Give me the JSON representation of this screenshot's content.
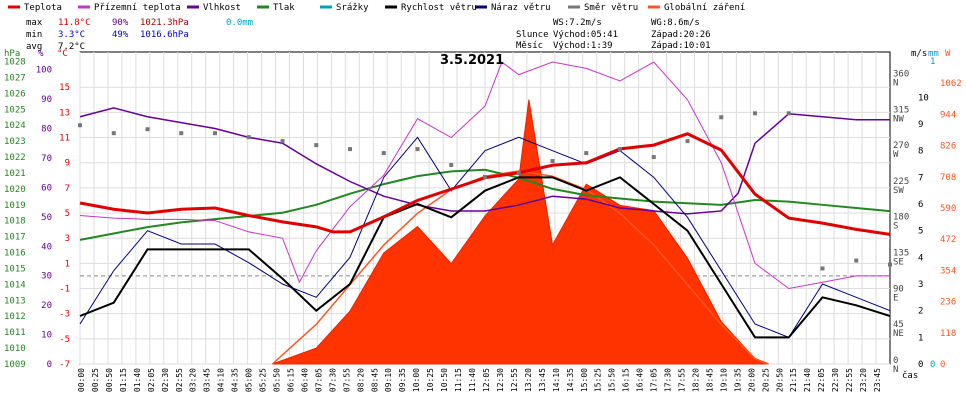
{
  "chart_data": {
    "type": "line",
    "title": "3.5.2021",
    "legend": [
      {
        "name": "Teplota",
        "color": "#e00000"
      },
      {
        "name": "Přízemní teplota",
        "color": "#cc33cc"
      },
      {
        "name": "Vlhkost",
        "color": "#660099"
      },
      {
        "name": "Tlak",
        "color": "#228822"
      },
      {
        "name": "Srážky",
        "color": "#00a0c0"
      },
      {
        "name": "Rychlost větru",
        "color": "#000000"
      },
      {
        "name": "Náraz větru",
        "color": "#000080"
      },
      {
        "name": "Směr větru",
        "color": "#777777"
      },
      {
        "name": "Globální záření",
        "color": "#ff5522"
      }
    ],
    "stats": {
      "max": {
        "label": "max",
        "temp": "11.8°C",
        "hum": "90%",
        "press": "1021.3hPa",
        "rain": "0.0mm"
      },
      "min": {
        "label": "min",
        "temp": "3.3°C",
        "hum": "49%",
        "press": "1016.6hPa"
      },
      "avg": {
        "label": "avg",
        "temp": "7.2°C"
      }
    },
    "info": {
      "ws": "WS:7.2m/s",
      "wg": "WG:8.6m/s",
      "sun_label": "Slunce",
      "sun_rise": "Východ:05:41",
      "sun_set": "Západ:20:26",
      "moon_label": "Měsíc",
      "moon_rise": "Východ:1:39",
      "moon_set": "Západ:10:01"
    },
    "axes": {
      "hpa_unit": "hPa",
      "pct_unit": "%",
      "degc_unit": "°C",
      "ms_unit": "m/s",
      "mm_unit": "mm",
      "w_unit": "W",
      "hpa": [
        "1028",
        "1027",
        "1026",
        "1025",
        "1024",
        "1023",
        "1022",
        "1021",
        "1020",
        "1019",
        "1018",
        "1017",
        "1016",
        "1015",
        "1014",
        "1013",
        "1012",
        "1011",
        "1010",
        "1009"
      ],
      "pct": [
        "100",
        "90",
        "80",
        "70",
        "60",
        "50",
        "40",
        "30",
        "20",
        "10",
        "0"
      ],
      "degc": [
        "15",
        "13",
        "11",
        "9",
        "7",
        "5",
        "3",
        "1",
        "-1",
        "-3",
        "-5",
        "-7"
      ],
      "dir": [
        {
          "deg": "360",
          "c": "N"
        },
        {
          "deg": "315",
          "c": "NW"
        },
        {
          "deg": "270",
          "c": "W"
        },
        {
          "deg": "225",
          "c": "SW"
        },
        {
          "deg": "180",
          "c": "S"
        },
        {
          "deg": "135",
          "c": "SE"
        },
        {
          "deg": "90",
          "c": "E"
        },
        {
          "deg": "45",
          "c": "NE"
        },
        {
          "deg": "0",
          "c": "N"
        }
      ],
      "ms": [
        "10",
        "9",
        "8",
        "7",
        "6",
        "5",
        "4",
        "3",
        "2",
        "1",
        "0"
      ],
      "mm": [
        "1",
        "0"
      ],
      "wm2": [
        "1062",
        "944",
        "826",
        "708",
        "590",
        "472",
        "354",
        "236",
        "118",
        "0"
      ],
      "time_label": "čas",
      "times": [
        "00:00",
        "00:25",
        "00:50",
        "01:15",
        "01:40",
        "02:05",
        "02:30",
        "02:55",
        "03:20",
        "03:45",
        "04:10",
        "04:35",
        "05:00",
        "05:25",
        "05:50",
        "06:15",
        "06:40",
        "07:05",
        "07:30",
        "07:55",
        "08:20",
        "08:45",
        "09:10",
        "09:35",
        "10:00",
        "10:25",
        "10:50",
        "11:15",
        "11:40",
        "12:05",
        "12:30",
        "12:55",
        "13:20",
        "13:45",
        "14:10",
        "14:35",
        "15:00",
        "15:25",
        "15:50",
        "16:15",
        "16:40",
        "17:05",
        "17:30",
        "17:55",
        "18:20",
        "18:45",
        "19:10",
        "19:35",
        "20:00",
        "20:25",
        "20:50",
        "21:15",
        "21:40",
        "22:05",
        "22:30",
        "22:55",
        "23:20",
        "23:45"
      ]
    },
    "series": [
      {
        "name": "Teplota",
        "unit": "°C",
        "x": [
          0,
          1,
          2,
          3,
          4,
          5,
          6,
          7,
          7.5,
          8,
          9,
          10,
          11,
          12,
          13,
          14,
          15,
          16,
          17,
          18,
          19,
          20,
          21,
          22,
          23,
          24
        ],
        "y": [
          5.8,
          5.3,
          5.0,
          5.3,
          5.4,
          4.8,
          4.3,
          3.9,
          3.5,
          3.5,
          4.7,
          6.0,
          6.9,
          7.8,
          8.2,
          8.8,
          9.0,
          10.1,
          10.4,
          11.3,
          10.0,
          6.5,
          4.6,
          4.2,
          3.7,
          3.3
        ]
      },
      {
        "name": "Přízemní teplota",
        "unit": "°C",
        "x": [
          0,
          1,
          2,
          3,
          4,
          5,
          6,
          6.5,
          7,
          8,
          9,
          10,
          11,
          12,
          12.5,
          13,
          14,
          15,
          16,
          17,
          18,
          19,
          19.5,
          20,
          21,
          22,
          23,
          24
        ],
        "y": [
          4.8,
          4.6,
          4.5,
          4.5,
          4.4,
          3.5,
          3.0,
          -0.5,
          2.0,
          5.5,
          8.0,
          12.5,
          11.0,
          13.5,
          17.0,
          16.0,
          17.0,
          16.5,
          15.5,
          17.0,
          14.0,
          9.0,
          5.0,
          1.0,
          -1.0,
          -0.5,
          0.0,
          0.0
        ]
      },
      {
        "name": "Vlhkost",
        "unit": "%",
        "x": [
          0,
          1,
          2,
          3,
          4,
          5,
          6,
          7,
          8,
          9,
          10,
          11,
          12,
          13,
          14,
          15,
          16,
          17,
          18,
          19,
          19.5,
          20,
          21,
          22,
          23,
          24
        ],
        "y": [
          84,
          87,
          84,
          82,
          80,
          77,
          75,
          68,
          62,
          57,
          54,
          52,
          52,
          54,
          57,
          56,
          53,
          52,
          51,
          52,
          58,
          75,
          85,
          84,
          83,
          83
        ]
      },
      {
        "name": "Tlak",
        "unit": "hPa",
        "x": [
          0,
          1,
          2,
          3,
          4,
          5,
          6,
          7,
          8,
          9,
          10,
          11,
          12,
          13,
          14,
          15,
          16,
          17,
          18,
          19,
          20,
          21,
          22,
          23,
          24
        ],
        "y": [
          1016.8,
          1017.2,
          1017.6,
          1017.9,
          1018.1,
          1018.3,
          1018.5,
          1019.0,
          1019.7,
          1020.3,
          1020.8,
          1021.1,
          1021.2,
          1020.7,
          1020.0,
          1019.6,
          1019.4,
          1019.2,
          1019.1,
          1019.0,
          1019.3,
          1019.2,
          1019.0,
          1018.8,
          1018.6
        ]
      },
      {
        "name": "Rychlost větru",
        "unit": "m/s",
        "x": [
          0,
          1,
          2,
          3,
          4,
          5,
          6,
          7,
          8,
          9,
          10,
          11,
          12,
          13,
          14,
          15,
          16,
          17,
          18,
          19,
          20,
          21,
          22,
          23,
          24
        ],
        "y": [
          1.8,
          2.3,
          4.3,
          4.3,
          4.3,
          4.3,
          3.2,
          2.0,
          3.0,
          5.5,
          6.0,
          5.5,
          6.5,
          7.0,
          7.0,
          6.5,
          7.0,
          6.0,
          5.0,
          3.0,
          1.0,
          1.0,
          2.5,
          2.2,
          1.8
        ]
      },
      {
        "name": "Náraz větru",
        "unit": "m/s",
        "x": [
          0,
          1,
          2,
          3,
          4,
          5,
          6,
          7,
          8,
          9,
          10,
          11,
          12,
          13,
          14,
          15,
          16,
          17,
          18,
          19,
          20,
          21,
          22,
          23,
          24
        ],
        "y": [
          1.5,
          3.5,
          5.0,
          4.5,
          4.5,
          3.8,
          3.0,
          2.5,
          4.0,
          7.0,
          8.5,
          6.5,
          8.0,
          8.5,
          8.0,
          7.5,
          8.0,
          7.0,
          5.5,
          3.5,
          1.5,
          1.0,
          3.0,
          2.5,
          2.0
        ]
      },
      {
        "name": "Směr větru",
        "unit": "°",
        "x": [
          0,
          1,
          2,
          3,
          4,
          5,
          6,
          7,
          8,
          9,
          10,
          11,
          12,
          13,
          14,
          15,
          16,
          17,
          18,
          19,
          20,
          21,
          22,
          23,
          24
        ],
        "y": [
          300,
          290,
          295,
          290,
          290,
          285,
          280,
          275,
          270,
          265,
          270,
          250,
          235,
          240,
          255,
          265,
          270,
          260,
          280,
          310,
          315,
          315,
          120,
          130,
          125
        ]
      },
      {
        "name": "Globální záření",
        "unit": "W/m²",
        "x": [
          5.7,
          7,
          8,
          9,
          10,
          11,
          12,
          13,
          13.3,
          14,
          15,
          16,
          17,
          18,
          19,
          20,
          20.4
        ],
        "y": [
          0,
          60,
          200,
          420,
          520,
          380,
          560,
          700,
          1000,
          450,
          680,
          600,
          580,
          400,
          160,
          20,
          0
        ]
      },
      {
        "name": "Teoretické záření",
        "unit": "W/m²",
        "x": [
          5.7,
          7,
          8,
          9,
          10,
          11,
          12,
          13,
          14,
          15,
          16,
          17,
          18,
          19,
          20,
          20.4
        ],
        "y": [
          0,
          150,
          300,
          450,
          570,
          660,
          710,
          730,
          710,
          660,
          570,
          450,
          300,
          150,
          20,
          0
        ]
      }
    ]
  }
}
